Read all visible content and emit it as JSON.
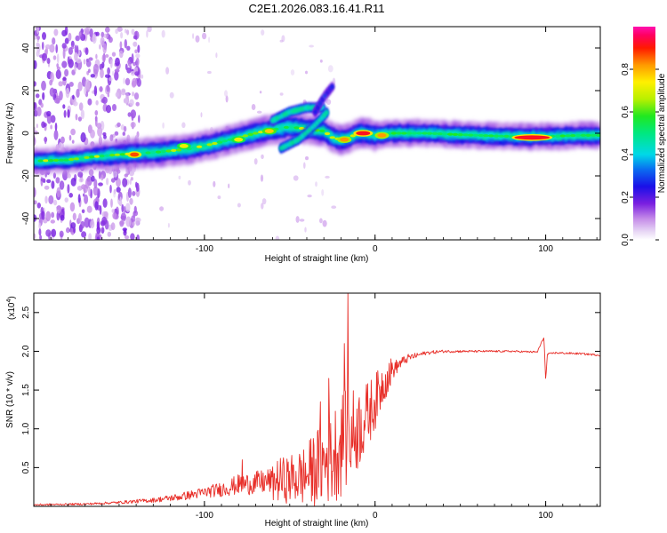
{
  "figure": {
    "title": "C2E1.2026.083.16.41.R11"
  },
  "chart_data": [
    {
      "type": "heatmap",
      "name": "spectrogram",
      "xlabel": "Height of straight line (km)",
      "ylabel": "Frequency (Hz)",
      "xlim": [
        -200,
        132
      ],
      "ylim": [
        -50,
        50
      ],
      "xticks": [
        -100,
        0,
        100
      ],
      "xtick_labels": [
        "-100",
        "0",
        "100"
      ],
      "yticks": [
        -40,
        -20,
        0,
        20,
        40
      ],
      "ytick_labels": [
        "-40",
        "-20",
        "0",
        "20",
        "40"
      ],
      "colorbar": {
        "label": "Normalized spectral amplitude",
        "range": [
          0,
          1
        ],
        "ticks": [
          0.0,
          0.2,
          0.4,
          0.6,
          0.8
        ],
        "tick_labels": [
          "0.0",
          "0.2",
          "0.4",
          "0.6",
          "0.8"
        ]
      },
      "ridge": {
        "description_points_x": [
          -200,
          -180,
          -165,
          -150,
          -130,
          -110,
          -95,
          -80,
          -65,
          -50,
          -40,
          -30,
          -25,
          -20,
          -15,
          -10,
          -5,
          0,
          10,
          30,
          60,
          80,
          100,
          120,
          132
        ],
        "frequency_hz": [
          -13,
          -12.5,
          -11,
          -10,
          -9,
          -7.5,
          -5,
          -2,
          1,
          3,
          2,
          1,
          -2,
          -3,
          -2,
          0,
          0,
          -1,
          0,
          0,
          -1,
          -1.5,
          -1.5,
          -1,
          -1
        ]
      },
      "branches": [
        {
          "x": [
            -60,
            -50,
            -40,
            -30
          ],
          "frequency_hz": [
            6,
            10,
            12,
            12
          ]
        },
        {
          "x": [
            -55,
            -45,
            -35,
            -28
          ],
          "frequency_hz": [
            -7,
            -3,
            4,
            10
          ]
        },
        {
          "x": [
            -35,
            -30,
            -25
          ],
          "frequency_hz": [
            10,
            17,
            22
          ]
        }
      ],
      "hot_spots": [
        {
          "x": -141,
          "frequency_hz": -10,
          "amp": 0.95
        },
        {
          "x": -7,
          "frequency_hz": 0,
          "amp": 1.0
        },
        {
          "x": 4,
          "frequency_hz": -1,
          "amp": 0.9
        },
        {
          "x": 92,
          "frequency_hz": -2,
          "amp": 1.0
        },
        {
          "x": -18,
          "frequency_hz": -3,
          "amp": 0.9
        },
        {
          "x": -62,
          "frequency_hz": 1,
          "amp": 0.85
        },
        {
          "x": -80,
          "frequency_hz": -3,
          "amp": 0.8
        },
        {
          "x": -112,
          "frequency_hz": -6,
          "amp": 0.8
        }
      ]
    },
    {
      "type": "line",
      "name": "snr",
      "xlabel": "Height of straight line (km)",
      "ylabel": "SNR (10 * v/v)",
      "y_multiplier_label": "(x10",
      "y_multiplier_exp": "4",
      "xlim": [
        -200,
        132
      ],
      "ylim": [
        0,
        2.75
      ],
      "xticks": [
        -100,
        0,
        100
      ],
      "xtick_labels": [
        "-100",
        "0",
        "100"
      ],
      "yticks": [
        0.5,
        1.0,
        1.5,
        2.0,
        2.5
      ],
      "ytick_labels": [
        "0.5",
        "1.0",
        "1.5",
        "2.0",
        "2.5"
      ],
      "series": [
        {
          "name": "SNR",
          "color": "#e8302a",
          "x": [
            -200,
            -170,
            -150,
            -130,
            -115,
            -100,
            -90,
            -80,
            -70,
            -60,
            -50,
            -40,
            -35,
            -30,
            -25,
            -20,
            -15,
            -10,
            -5,
            0,
            5,
            10,
            15,
            20,
            25,
            30,
            40,
            60,
            80,
            95,
            99,
            100,
            101,
            105,
            120,
            132
          ],
          "values": [
            0.02,
            0.03,
            0.05,
            0.08,
            0.12,
            0.18,
            0.22,
            0.28,
            0.3,
            0.33,
            0.35,
            0.4,
            0.5,
            0.55,
            0.65,
            0.8,
            0.9,
            1.0,
            1.15,
            1.35,
            1.6,
            1.75,
            1.85,
            1.92,
            1.95,
            1.98,
            2.0,
            2.0,
            2.0,
            1.99,
            2.18,
            1.62,
            1.96,
            1.98,
            1.97,
            1.95
          ],
          "noise_envelope": [
            0.02,
            0.02,
            0.03,
            0.05,
            0.08,
            0.12,
            0.16,
            0.22,
            0.25,
            0.3,
            0.35,
            0.45,
            0.55,
            0.6,
            0.7,
            0.75,
            0.7,
            0.6,
            0.5,
            0.4,
            0.3,
            0.2,
            0.12,
            0.08,
            0.05,
            0.04,
            0.03,
            0.02,
            0.02,
            0.02,
            0.02,
            0.02,
            0.02,
            0.02,
            0.02,
            0.02
          ],
          "spikes": [
            {
              "x": -16,
              "value": 2.75
            },
            {
              "x": -18,
              "value": 2.1
            },
            {
              "x": -27,
              "value": 1.65
            },
            {
              "x": -32,
              "value": 1.35
            },
            {
              "x": -78,
              "value": 0.6
            }
          ]
        }
      ]
    }
  ]
}
